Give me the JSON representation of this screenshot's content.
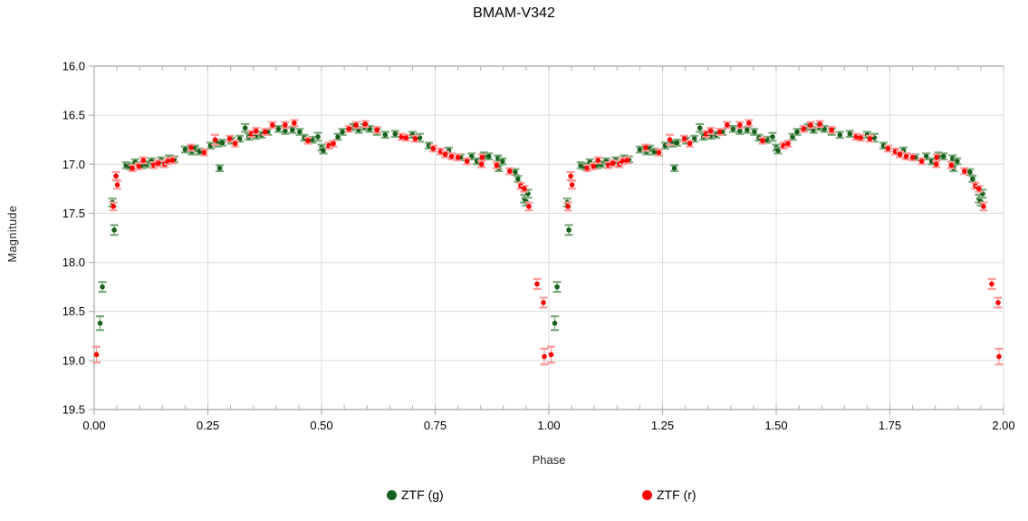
{
  "figure": {
    "background": "#ffffff",
    "axis_color": "#b3b3b3",
    "grid_color": "#dcdcdc",
    "text_color": "#000000"
  },
  "chart_data": {
    "type": "scatter",
    "title": "BMAM-V342",
    "xlabel": "Phase",
    "ylabel": "Magnitude",
    "x_range": [
      0.0,
      2.0
    ],
    "y_range_inverted": [
      16.0,
      19.5
    ],
    "x_tick_labels": [
      "0.00",
      "0.25",
      "0.50",
      "0.75",
      "1.00",
      "1.25",
      "1.50",
      "1.75",
      "2.00"
    ],
    "x_major_ticks": [
      0,
      0.25,
      0.5,
      0.75,
      1.0,
      1.25,
      1.5,
      1.75,
      2.0
    ],
    "x_minor_step": 0.05,
    "y_tick_labels": [
      "16.0",
      "16.5",
      "17.0",
      "17.5",
      "18.0",
      "18.5",
      "19.0",
      "19.5"
    ],
    "y_ticks": [
      16.0,
      16.5,
      17.0,
      17.5,
      18.0,
      18.5,
      19.0,
      19.5
    ],
    "grid": true,
    "legend_position": "bottom",
    "folded_light_curve": "each point of phase 0-1 is plotted again at phase+1",
    "series": [
      {
        "name": "ZTF (g)",
        "color": "#16621c",
        "error_color": "#7aa97a",
        "points_format": [
          "phase",
          "magnitude",
          "error"
        ],
        "points": [
          [
            0.013,
            18.62,
            0.07
          ],
          [
            0.018,
            18.25,
            0.05
          ],
          [
            0.04,
            17.39,
            0.04
          ],
          [
            0.044,
            17.67,
            0.05
          ],
          [
            0.07,
            17.01,
            0.03
          ],
          [
            0.078,
            17.02,
            0.03
          ],
          [
            0.09,
            16.98,
            0.03
          ],
          [
            0.106,
            17.01,
            0.03
          ],
          [
            0.116,
            17.0,
            0.03
          ],
          [
            0.126,
            16.97,
            0.03
          ],
          [
            0.147,
            16.96,
            0.03
          ],
          [
            0.165,
            16.94,
            0.03
          ],
          [
            0.176,
            16.95,
            0.03
          ],
          [
            0.2,
            16.85,
            0.03
          ],
          [
            0.215,
            16.87,
            0.03
          ],
          [
            0.222,
            16.84,
            0.03
          ],
          [
            0.232,
            16.87,
            0.03
          ],
          [
            0.256,
            16.81,
            0.03
          ],
          [
            0.272,
            16.79,
            0.03
          ],
          [
            0.276,
            17.04,
            0.03
          ],
          [
            0.282,
            16.78,
            0.03
          ],
          [
            0.302,
            16.76,
            0.03
          ],
          [
            0.32,
            16.74,
            0.03
          ],
          [
            0.332,
            16.63,
            0.04
          ],
          [
            0.34,
            16.72,
            0.03
          ],
          [
            0.356,
            16.71,
            0.03
          ],
          [
            0.368,
            16.7,
            0.03
          ],
          [
            0.382,
            16.67,
            0.03
          ],
          [
            0.405,
            16.64,
            0.03
          ],
          [
            0.42,
            16.66,
            0.03
          ],
          [
            0.436,
            16.65,
            0.03
          ],
          [
            0.452,
            16.67,
            0.03
          ],
          [
            0.462,
            16.73,
            0.03
          ],
          [
            0.48,
            16.75,
            0.03
          ],
          [
            0.492,
            16.72,
            0.04
          ],
          [
            0.5,
            16.83,
            0.03
          ],
          [
            0.504,
            16.86,
            0.03
          ],
          [
            0.536,
            16.72,
            0.03
          ],
          [
            0.546,
            16.67,
            0.03
          ],
          [
            0.57,
            16.62,
            0.03
          ],
          [
            0.582,
            16.65,
            0.03
          ],
          [
            0.594,
            16.62,
            0.03
          ],
          [
            0.606,
            16.64,
            0.03
          ],
          [
            0.622,
            16.67,
            0.03
          ],
          [
            0.64,
            16.7,
            0.03
          ],
          [
            0.662,
            16.69,
            0.03
          ],
          [
            0.7,
            16.7,
            0.03
          ],
          [
            0.716,
            16.73,
            0.04
          ],
          [
            0.736,
            16.81,
            0.03
          ],
          [
            0.78,
            16.86,
            0.03
          ],
          [
            0.806,
            16.93,
            0.03
          ],
          [
            0.83,
            16.92,
            0.03
          ],
          [
            0.842,
            16.97,
            0.03
          ],
          [
            0.857,
            16.91,
            0.03
          ],
          [
            0.868,
            16.92,
            0.03
          ],
          [
            0.888,
            16.94,
            0.03
          ],
          [
            0.89,
            17.04,
            0.03
          ],
          [
            0.898,
            16.97,
            0.03
          ],
          [
            0.926,
            17.08,
            0.03
          ],
          [
            0.932,
            17.15,
            0.03
          ],
          [
            0.946,
            17.35,
            0.04
          ],
          [
            0.95,
            17.38,
            0.04
          ],
          [
            0.954,
            17.3,
            0.04
          ]
        ]
      },
      {
        "name": "ZTF (r)",
        "color": "#ff0000",
        "error_color": "#ff9a9a",
        "points_format": [
          "phase",
          "magnitude",
          "error"
        ],
        "points": [
          [
            0.005,
            18.94,
            0.08
          ],
          [
            0.042,
            17.43,
            0.04
          ],
          [
            0.048,
            17.12,
            0.04
          ],
          [
            0.051,
            17.21,
            0.04
          ],
          [
            0.084,
            17.04,
            0.03
          ],
          [
            0.098,
            17.02,
            0.03
          ],
          [
            0.108,
            16.96,
            0.03
          ],
          [
            0.131,
            17.01,
            0.03
          ],
          [
            0.141,
            16.99,
            0.03
          ],
          [
            0.155,
            17.0,
            0.03
          ],
          [
            0.162,
            16.97,
            0.03
          ],
          [
            0.172,
            16.96,
            0.03
          ],
          [
            0.213,
            16.83,
            0.03
          ],
          [
            0.242,
            16.88,
            0.03
          ],
          [
            0.266,
            16.75,
            0.05
          ],
          [
            0.298,
            16.74,
            0.03
          ],
          [
            0.31,
            16.79,
            0.03
          ],
          [
            0.346,
            16.69,
            0.03
          ],
          [
            0.356,
            16.66,
            0.03
          ],
          [
            0.376,
            16.67,
            0.03
          ],
          [
            0.392,
            16.6,
            0.03
          ],
          [
            0.42,
            16.6,
            0.03
          ],
          [
            0.44,
            16.58,
            0.03
          ],
          [
            0.47,
            16.76,
            0.03
          ],
          [
            0.516,
            16.81,
            0.03
          ],
          [
            0.526,
            16.79,
            0.03
          ],
          [
            0.56,
            16.64,
            0.03
          ],
          [
            0.576,
            16.6,
            0.03
          ],
          [
            0.596,
            16.59,
            0.03
          ],
          [
            0.622,
            16.65,
            0.03
          ],
          [
            0.676,
            16.72,
            0.03
          ],
          [
            0.686,
            16.73,
            0.03
          ],
          [
            0.706,
            16.74,
            0.03
          ],
          [
            0.746,
            16.84,
            0.03
          ],
          [
            0.762,
            16.87,
            0.03
          ],
          [
            0.772,
            16.9,
            0.03
          ],
          [
            0.786,
            16.92,
            0.03
          ],
          [
            0.8,
            16.93,
            0.03
          ],
          [
            0.82,
            16.97,
            0.03
          ],
          [
            0.852,
            17.0,
            0.03
          ],
          [
            0.853,
            16.93,
            0.03
          ],
          [
            0.885,
            17.01,
            0.03
          ],
          [
            0.914,
            17.07,
            0.03
          ],
          [
            0.938,
            17.22,
            0.03
          ],
          [
            0.946,
            17.25,
            0.03
          ],
          [
            0.956,
            17.43,
            0.04
          ],
          [
            0.974,
            18.22,
            0.05
          ],
          [
            0.988,
            18.41,
            0.05
          ],
          [
            0.99,
            18.96,
            0.08
          ]
        ]
      }
    ]
  }
}
